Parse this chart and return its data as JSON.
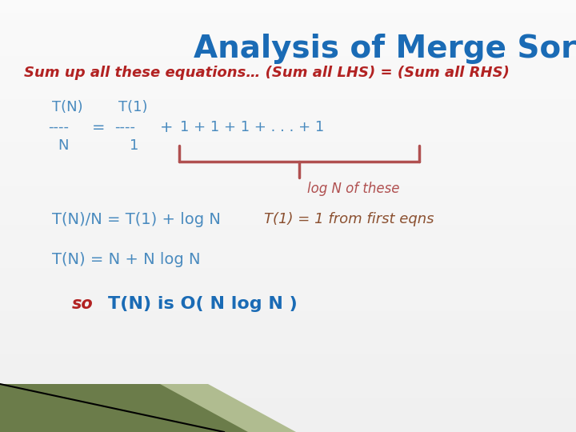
{
  "title": "Analysis of Merge Sort",
  "title_color": "#1a6bb5",
  "title_fontsize": 28,
  "bg_color": "#f0f0f0",
  "subtitle": "Sum up all these equations… (Sum all LHS) = (Sum all RHS)",
  "subtitle_color": "#b22222",
  "subtitle_fontsize": 13,
  "blue_color": "#4a8bbf",
  "dark_blue": "#1a6bb5",
  "red_color": "#b22222",
  "brown_color": "#b05050",
  "eq_color": "#4a8bbf",
  "note_color": "#8b5030",
  "brace_label": "log N of these",
  "eq1": "T(N)/N = T(1) + log N",
  "eq1_note": "T(1) = 1 from first eqns",
  "eq2": "T(N) = N + N log N",
  "conclusion_so": "so",
  "conclusion_main": "T(N) is O( N log N )",
  "stripe_dark": "#6b7c4a",
  "stripe_light": "#a0b080"
}
